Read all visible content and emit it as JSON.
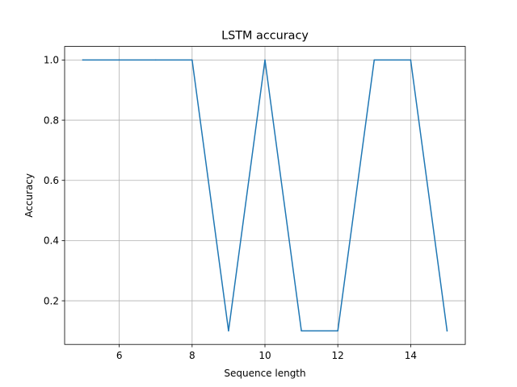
{
  "chart_data": {
    "type": "line",
    "title": "LSTM accuracy",
    "xlabel": "Sequence length",
    "ylabel": "Accuracy",
    "x": [
      5,
      6,
      7,
      8,
      9,
      10,
      11,
      12,
      13,
      14,
      15
    ],
    "series": [
      {
        "values": [
          1.0,
          1.0,
          1.0,
          1.0,
          0.1,
          1.0,
          0.1,
          0.1,
          1.0,
          1.0,
          0.1
        ],
        "color": "#1f77b4"
      }
    ],
    "xlim": [
      4.5,
      15.5
    ],
    "ylim": [
      0.055,
      1.045
    ],
    "xticks": [
      "6",
      "8",
      "10",
      "12",
      "14"
    ],
    "yticks": [
      "0.2",
      "0.4",
      "0.6",
      "0.8",
      "1.0"
    ],
    "grid": true,
    "legend": "none"
  }
}
